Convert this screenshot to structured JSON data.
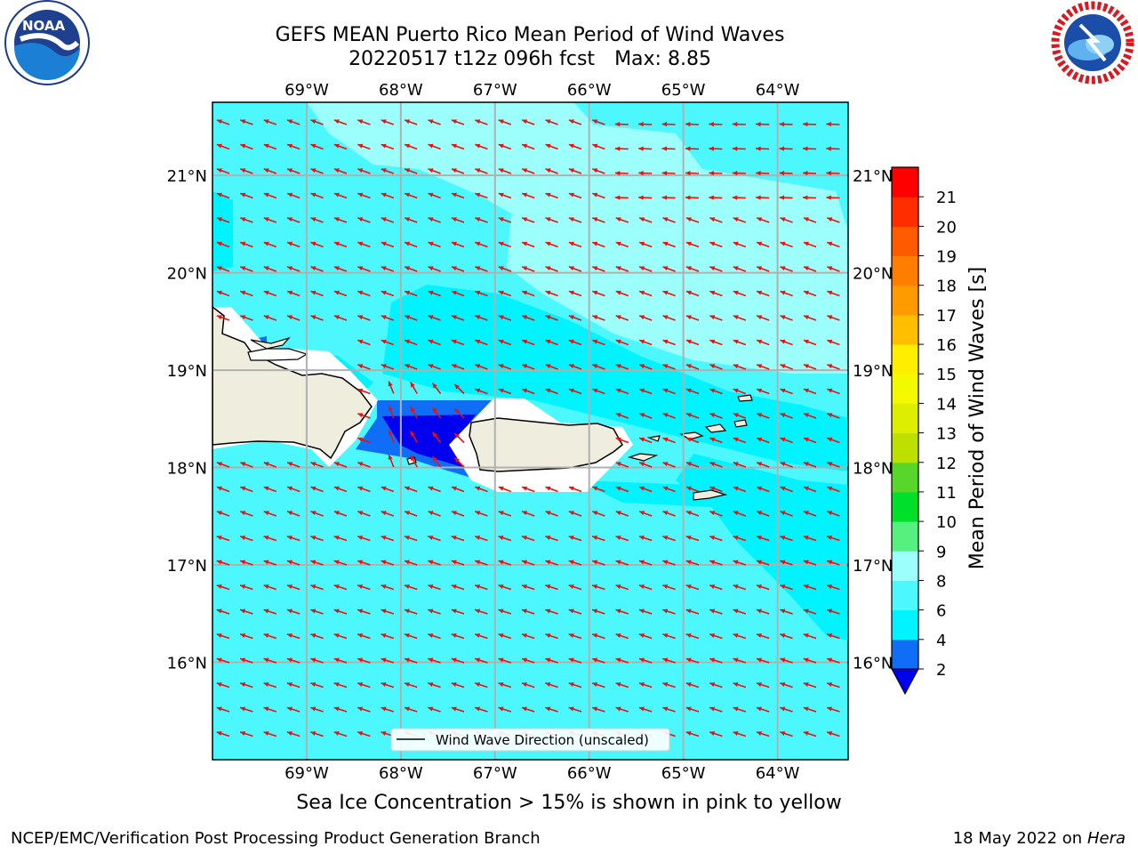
{
  "title": {
    "line1": "GEFS MEAN Puerto Rico Mean Period of Wind Waves",
    "line2": "20220517 t12z 096h fcst",
    "max_label": "Max: 8.85"
  },
  "logos": {
    "left": {
      "icon": "noaa-logo-icon",
      "text": "NOAA"
    },
    "right": {
      "icon": "nws-logo-icon"
    }
  },
  "map": {
    "lon_ticks": [
      "69°W",
      "68°W",
      "67°W",
      "66°W",
      "65°W",
      "64°W"
    ],
    "lat_ticks": [
      "21°N",
      "20°N",
      "19°N",
      "18°N",
      "17°N",
      "16°N"
    ],
    "lon_values": [
      -69,
      -68,
      -67,
      -66,
      -65,
      -64
    ],
    "lat_values": [
      21,
      20,
      19,
      18,
      17,
      16
    ],
    "lon_range": [
      -70.0,
      -63.25
    ],
    "lat_range": [
      15.0,
      21.75
    ],
    "legend_label": "Wind Wave Direction (unscaled)",
    "arrow_color": "#e8110f",
    "land_color": "#efedde",
    "gridlines": true
  },
  "colorbar": {
    "label": "Mean Period of Wind Waves [s]",
    "ticks": [
      "21",
      "20",
      "19",
      "18",
      "17",
      "16",
      "15",
      "14",
      "13",
      "12",
      "11",
      "10",
      "9",
      "8",
      "6",
      "4",
      "2"
    ],
    "bins": [
      {
        "from": 2,
        "to": 4,
        "color": "#0f6ef5"
      },
      {
        "from": 4,
        "to": 6,
        "color": "#00f3ff"
      },
      {
        "from": 6,
        "to": 8,
        "color": "#4cf8fd"
      },
      {
        "from": 8,
        "to": 9,
        "color": "#9cfffb"
      },
      {
        "from": 9,
        "to": 10,
        "color": "#55f080"
      },
      {
        "from": 10,
        "to": 11,
        "color": "#00e02a"
      },
      {
        "from": 11,
        "to": 12,
        "color": "#59d62a"
      },
      {
        "from": 12,
        "to": 13,
        "color": "#bee000"
      },
      {
        "from": 13,
        "to": 14,
        "color": "#ddee00"
      },
      {
        "from": 14,
        "to": 15,
        "color": "#f2f900"
      },
      {
        "from": 15,
        "to": 16,
        "color": "#ffee00"
      },
      {
        "from": 16,
        "to": 17,
        "color": "#ffbf00"
      },
      {
        "from": 17,
        "to": 18,
        "color": "#ff9a00"
      },
      {
        "from": 18,
        "to": 19,
        "color": "#ff7d00"
      },
      {
        "from": 19,
        "to": 20,
        "color": "#ff5a00"
      },
      {
        "from": 20,
        "to": 21,
        "color": "#ff2d00"
      },
      {
        "from": 21,
        "to": 22,
        "color": "#ff0000"
      }
    ],
    "underflow_color": "#0000ee"
  },
  "caption": "Sea Ice Concentration > 15% is shown in pink to yellow",
  "footer": {
    "left": "NCEP/EMC/Verification Post Processing Product Generation Branch",
    "right_prefix": "18 May 2022 on",
    "right_host": "Hera"
  }
}
